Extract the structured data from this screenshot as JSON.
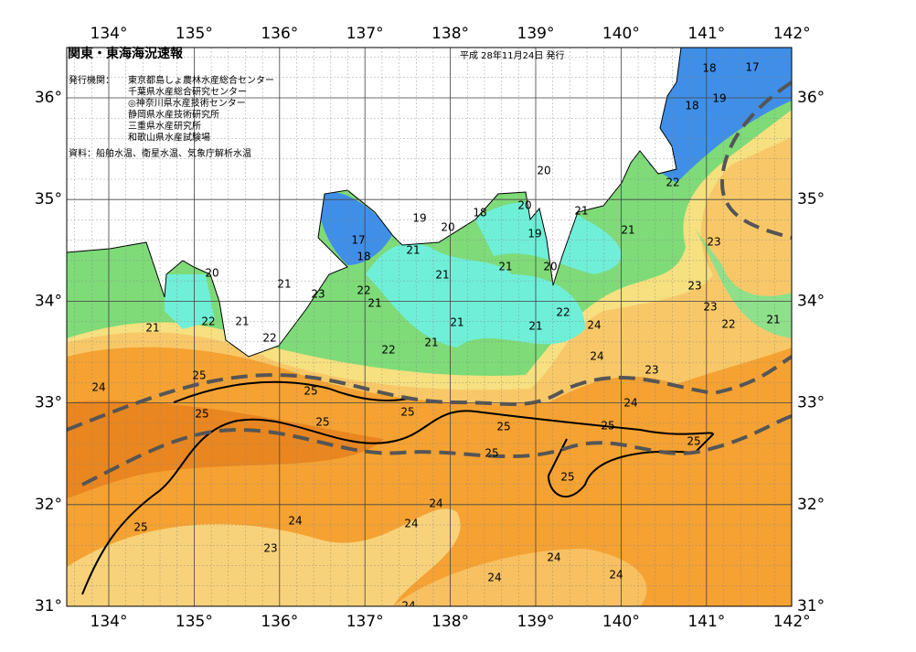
{
  "header": {
    "title": "関東・東海海況速報",
    "date": "平成 28年11月24日 発行",
    "issuers_label": "発行機関：",
    "issuers": [
      "東京都島しょ農林水産総合センター",
      "千葉県水産総合研究センター",
      "◎神奈川県水産技術センター",
      "静岡県水産技術研究所",
      "三重県水産研究所",
      "和歌山県水産試験場"
    ],
    "sources": "資料：船舶水温、衛星水温、気象庁解析水温"
  },
  "map": {
    "longitude_labels": [
      "134°",
      "135°",
      "136°",
      "137°",
      "138°",
      "139°",
      "140°",
      "141°",
      "142°"
    ],
    "latitude_labels": [
      "36°",
      "35°",
      "34°",
      "33°",
      "32°",
      "31°"
    ],
    "isotherm_labels": [
      18,
      17,
      19,
      18,
      20,
      22,
      19,
      20,
      18,
      20,
      21,
      19,
      21,
      17,
      18,
      21,
      23,
      20,
      21,
      21,
      21,
      20,
      23,
      22,
      21,
      23,
      21,
      22,
      21,
      22,
      23,
      21,
      21,
      24,
      22,
      21,
      22,
      22,
      21,
      24,
      23,
      25,
      24,
      25,
      24,
      25,
      25,
      25,
      25,
      25,
      25,
      25,
      25,
      24,
      25,
      24,
      24,
      23,
      24,
      24,
      24,
      24
    ]
  }
}
